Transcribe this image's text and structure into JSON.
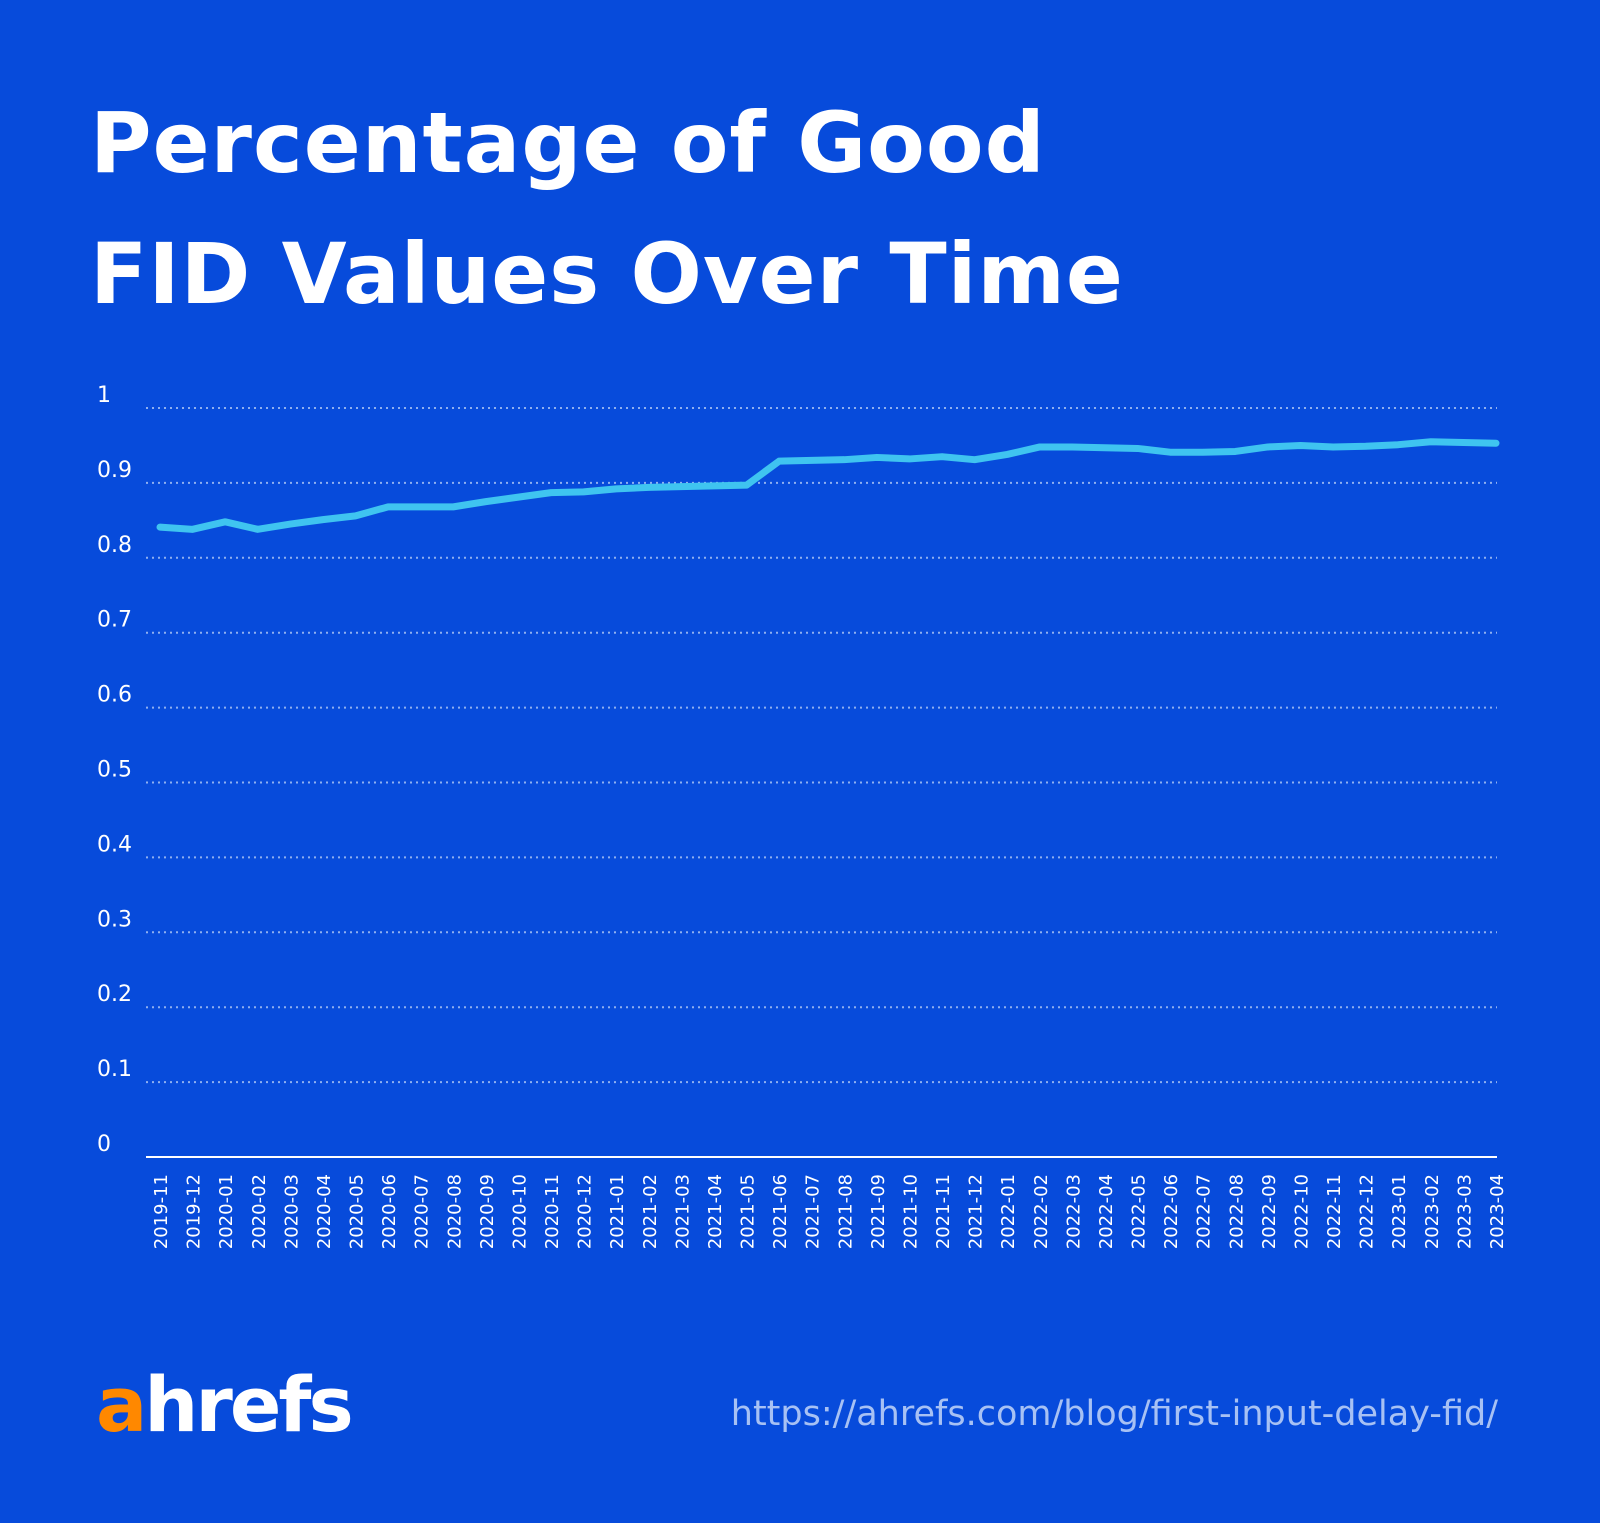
{
  "chart_data": {
    "type": "line",
    "title": "Percentage of Good FID Values Over Time",
    "title_lines": [
      "Percentage of Good",
      "FID Values Over Time"
    ],
    "xlabel": "",
    "ylabel": "",
    "ylim": [
      0,
      1
    ],
    "yticks": [
      "0",
      "0.1",
      "0.2",
      "0.3",
      "0.4",
      "0.5",
      "0.6",
      "0.7",
      "0.8",
      "0.9",
      "1"
    ],
    "grid": true,
    "line_color": "#3fc4f0",
    "background_color": "#074bdb",
    "x": [
      "2019-11",
      "2019-12",
      "2020-01",
      "2020-02",
      "2020-03",
      "2020-04",
      "2020-05",
      "2020-06",
      "2020-07",
      "2020-08",
      "2020-09",
      "2020-10",
      "2020-11",
      "2020-12",
      "2021-01",
      "2021-02",
      "2021-03",
      "2021-04",
      "2021-05",
      "2021-06",
      "2021-07",
      "2021-08",
      "2021-09",
      "2021-10",
      "2021-11",
      "2021-12",
      "2022-01",
      "2022-02",
      "2022-03",
      "2022-04",
      "2022-05",
      "2022-06",
      "2022-07",
      "2022-08",
      "2022-09",
      "2022-10",
      "2022-11",
      "2022-12",
      "2023-01",
      "2023-02",
      "2023-03",
      "2023-04"
    ],
    "values": [
      0.841,
      0.838,
      0.848,
      0.838,
      0.845,
      0.851,
      0.856,
      0.868,
      0.868,
      0.868,
      0.875,
      0.881,
      0.887,
      0.888,
      0.892,
      0.894,
      0.895,
      0.896,
      0.897,
      0.929,
      0.93,
      0.931,
      0.934,
      0.932,
      0.935,
      0.931,
      0.938,
      0.948,
      0.948,
      0.947,
      0.946,
      0.941,
      0.941,
      0.942,
      0.948,
      0.95,
      0.948,
      0.949,
      0.951,
      0.955,
      0.954,
      0.953
    ]
  },
  "footer": {
    "logo_a": "a",
    "logo_rest": "hrefs",
    "logo_accent": "#ff8800",
    "url": "https://ahrefs.com/blog/first-input-delay-fid/"
  }
}
